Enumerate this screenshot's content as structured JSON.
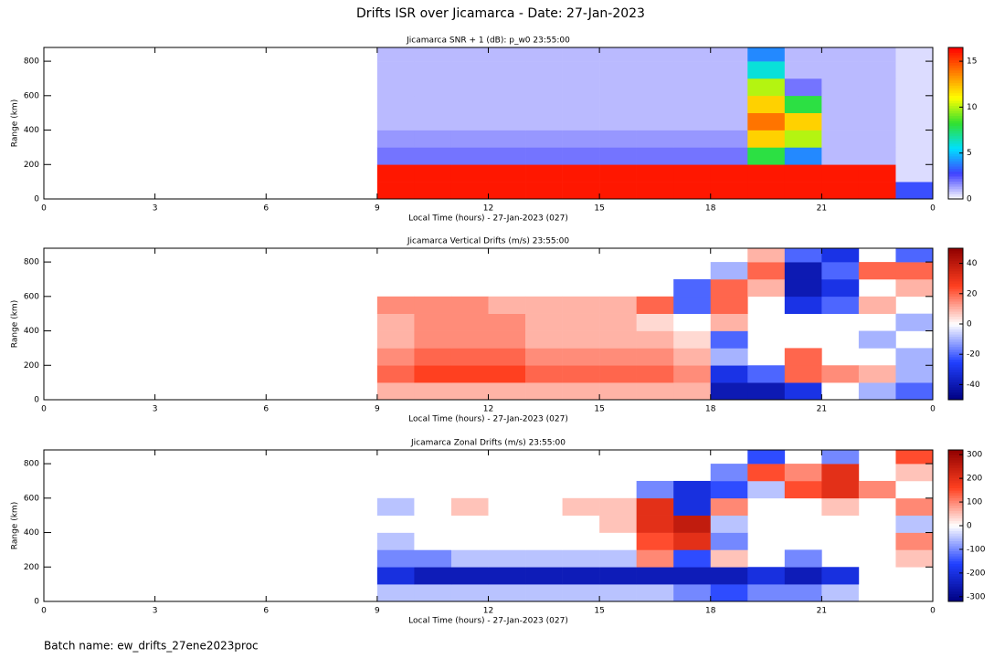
{
  "title": "Drifts ISR over Jicamarca - Date: 27-Jan-2023",
  "footer": "Batch name: ew_drifts_27ene2023proc",
  "chart_data": [
    {
      "type": "heatmap",
      "title": "Jicamarca SNR + 1 (dB): p_w0 23:55:00",
      "x_label": "Local Time (hours) - 27-Jan-2023 (027)",
      "y_label": "Range (km)",
      "xlim": [
        0,
        24
      ],
      "xticks": [
        0,
        3,
        6,
        9,
        12,
        15,
        18,
        21,
        {
          "value": 24,
          "label": "0"
        }
      ],
      "ylim": [
        0,
        880
      ],
      "yticks": [
        0,
        200,
        400,
        600,
        800
      ],
      "xbins": [
        9,
        10,
        11,
        12,
        13,
        14,
        15,
        16,
        17,
        18,
        19,
        20,
        21,
        22,
        23,
        24
      ],
      "ybins": [
        0,
        100,
        200,
        300,
        400,
        500,
        600,
        700,
        800,
        900
      ],
      "zlim": [
        0,
        16.5
      ],
      "zticks": [
        0,
        5,
        10,
        15
      ],
      "colors": [
        "#ffffff",
        "#4040ff",
        "#00e0ff",
        "#30e030",
        "#ffff00",
        "#ff8000",
        "#ff0000"
      ],
      "values": [
        [
          16,
          16,
          16,
          16,
          16,
          16,
          16,
          16,
          16,
          16,
          16,
          16,
          16,
          16,
          3
        ],
        [
          16,
          16,
          16,
          16,
          16,
          16,
          16,
          16,
          16,
          16,
          16,
          16,
          16,
          16,
          0.5
        ],
        [
          2,
          2,
          2,
          2,
          2,
          2,
          2,
          2,
          2,
          2,
          8,
          4,
          1,
          1,
          0.5
        ],
        [
          1.5,
          1.5,
          1.5,
          1.5,
          1.5,
          1.5,
          1.5,
          1.5,
          1.5,
          1.5,
          12,
          10,
          1,
          1,
          0.5
        ],
        [
          1,
          1,
          1,
          1,
          1,
          1,
          1,
          1,
          1,
          1,
          14,
          12,
          1,
          1,
          0.5
        ],
        [
          1,
          1,
          1,
          1,
          1,
          1,
          1,
          1,
          1,
          1,
          12,
          8,
          1,
          1,
          0.5
        ],
        [
          1,
          1,
          1,
          1,
          1,
          1,
          1,
          1,
          1,
          1,
          10,
          2,
          1,
          1,
          0.5
        ],
        [
          1,
          1,
          1,
          1,
          1,
          1,
          1,
          1,
          1,
          1,
          6,
          1,
          1,
          1,
          0.5
        ],
        [
          1,
          1,
          1,
          1,
          1,
          1,
          1,
          1,
          1,
          1,
          4,
          1,
          1,
          1,
          0.5
        ]
      ]
    },
    {
      "type": "heatmap",
      "title": "Jicamarca Vertical Drifts (m/s) 23:55:00",
      "x_label": "Local Time (hours) - 27-Jan-2023 (027)",
      "y_label": "Range (km)",
      "xlim": [
        0,
        24
      ],
      "xticks": [
        0,
        3,
        6,
        9,
        12,
        15,
        18,
        21,
        {
          "value": 24,
          "label": "0"
        }
      ],
      "ylim": [
        0,
        880
      ],
      "yticks": [
        0,
        200,
        400,
        600,
        800
      ],
      "xbins": [
        9,
        10,
        11,
        12,
        13,
        14,
        15,
        16,
        17,
        18,
        19,
        20,
        21,
        22,
        23,
        24
      ],
      "ybins": [
        0,
        100,
        200,
        300,
        400,
        500,
        600,
        700,
        800,
        900
      ],
      "zlim": [
        -50,
        50
      ],
      "zticks": [
        -40,
        -20,
        0,
        20,
        40
      ],
      "colors": [
        "#000080",
        "#2040ff",
        "#ffffff",
        "#ff4020",
        "#900000"
      ],
      "values": [
        [
          10,
          10,
          10,
          10,
          10,
          10,
          10,
          10,
          10,
          -40,
          -40,
          -30,
          0,
          -10,
          -20
        ],
        [
          20,
          25,
          25,
          25,
          20,
          20,
          20,
          20,
          15,
          -30,
          -20,
          20,
          15,
          10,
          -10
        ],
        [
          15,
          20,
          20,
          20,
          15,
          15,
          15,
          15,
          10,
          -10,
          null,
          20,
          null,
          null,
          -10
        ],
        [
          10,
          15,
          15,
          15,
          10,
          10,
          10,
          10,
          5,
          -20,
          null,
          null,
          null,
          -10,
          null
        ],
        [
          10,
          15,
          15,
          15,
          10,
          10,
          10,
          5,
          0,
          10,
          null,
          null,
          null,
          null,
          -10
        ],
        [
          15,
          15,
          15,
          10,
          10,
          10,
          10,
          20,
          -20,
          20,
          null,
          -30,
          -20,
          10,
          null
        ],
        [
          null,
          null,
          null,
          null,
          null,
          null,
          null,
          null,
          -20,
          20,
          10,
          -40,
          -30,
          null,
          10
        ],
        [
          null,
          null,
          null,
          null,
          null,
          null,
          null,
          null,
          null,
          -10,
          20,
          -40,
          -20,
          20,
          20
        ],
        [
          null,
          null,
          null,
          null,
          null,
          null,
          null,
          null,
          null,
          null,
          10,
          -20,
          -30,
          null,
          -20
        ]
      ]
    },
    {
      "type": "heatmap",
      "title": "Jicamarca Zonal Drifts (m/s) 23:55:00",
      "x_label": "Local Time (hours) - 27-Jan-2023 (027)",
      "y_label": "Range (km)",
      "xlim": [
        0,
        24
      ],
      "xticks": [
        0,
        3,
        6,
        9,
        12,
        15,
        18,
        21,
        {
          "value": 24,
          "label": "0"
        }
      ],
      "ylim": [
        0,
        880
      ],
      "yticks": [
        0,
        200,
        400,
        600,
        800
      ],
      "xbins": [
        9,
        10,
        11,
        12,
        13,
        14,
        15,
        16,
        17,
        18,
        19,
        20,
        21,
        22,
        23,
        24
      ],
      "ybins": [
        0,
        100,
        200,
        300,
        400,
        500,
        600,
        700,
        800,
        900
      ],
      "zlim": [
        -320,
        320
      ],
      "zticks": [
        -300,
        -200,
        -100,
        0,
        100,
        200,
        300
      ],
      "colors": [
        "#000080",
        "#2040ff",
        "#ffffff",
        "#ff4020",
        "#900000"
      ],
      "values": [
        [
          -50,
          -50,
          -50,
          -50,
          -50,
          -50,
          -50,
          -50,
          -100,
          -150,
          -100,
          -100,
          -50,
          0,
          0
        ],
        [
          -200,
          -250,
          -250,
          -250,
          -250,
          -250,
          -250,
          -250,
          -250,
          -250,
          -200,
          -250,
          -200,
          null,
          0
        ],
        [
          -100,
          -100,
          -50,
          -50,
          -50,
          -50,
          -50,
          100,
          -150,
          50,
          null,
          -100,
          null,
          null,
          50
        ],
        [
          -50,
          0,
          0,
          0,
          0,
          0,
          0,
          150,
          200,
          -100,
          null,
          null,
          null,
          0,
          100
        ],
        [
          0,
          0,
          0,
          0,
          0,
          0,
          50,
          200,
          250,
          -50,
          null,
          null,
          null,
          null,
          -50
        ],
        [
          -50,
          0,
          50,
          0,
          0,
          50,
          50,
          200,
          -200,
          100,
          null,
          null,
          50,
          null,
          100
        ],
        [
          null,
          null,
          null,
          null,
          null,
          null,
          null,
          -100,
          -200,
          -150,
          -50,
          150,
          200,
          100,
          0
        ],
        [
          null,
          null,
          null,
          null,
          null,
          null,
          null,
          null,
          null,
          -100,
          150,
          100,
          200,
          null,
          50
        ],
        [
          null,
          null,
          null,
          null,
          null,
          null,
          null,
          null,
          null,
          null,
          -150,
          null,
          -100,
          null,
          150
        ]
      ]
    }
  ]
}
